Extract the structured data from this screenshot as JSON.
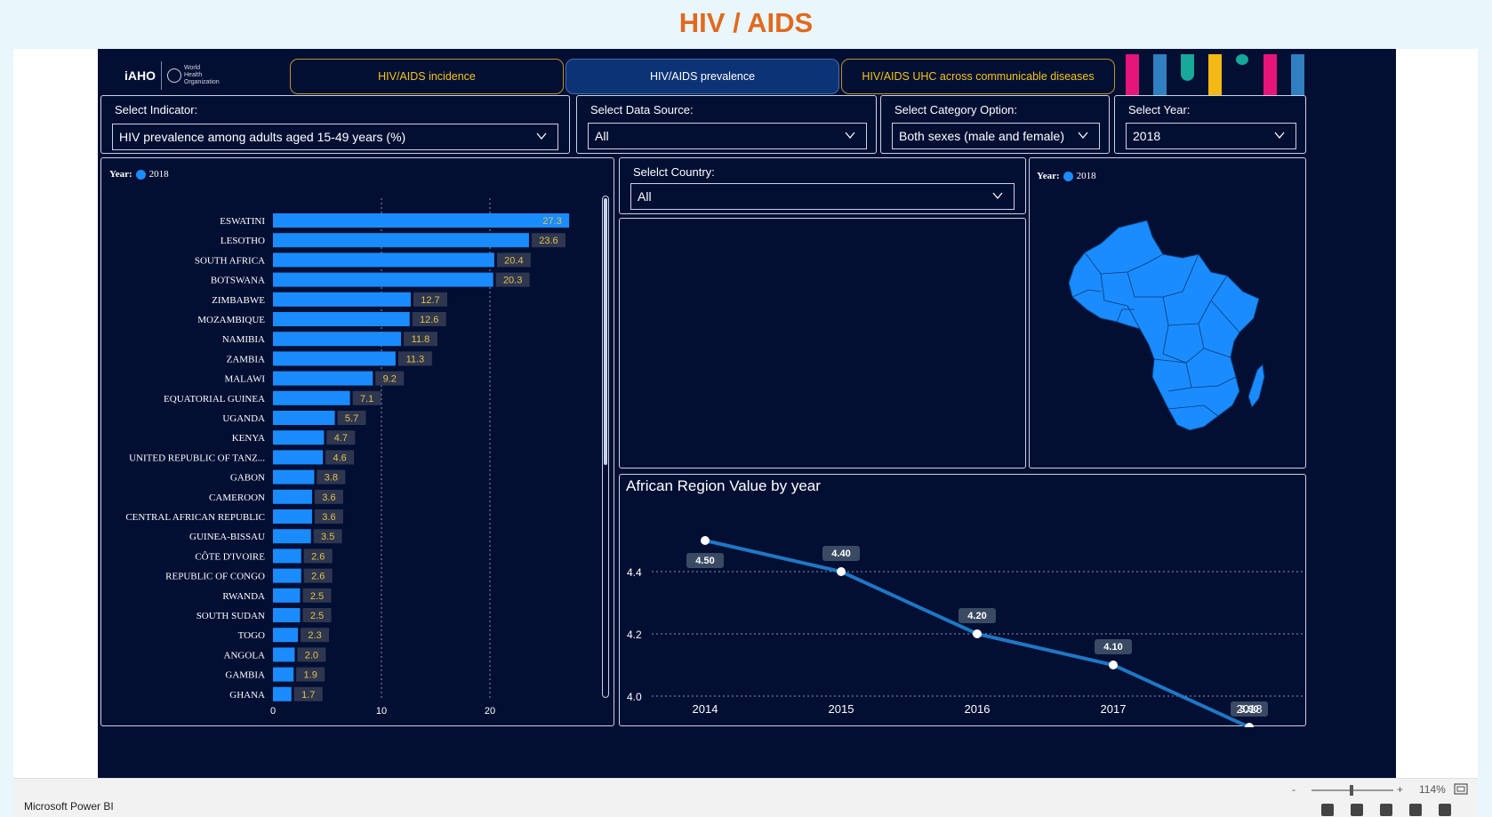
{
  "page": {
    "title": "HIV / AIDS"
  },
  "header": {
    "logo_left": "iAHO",
    "logo_right": "World Health Organization",
    "tabs": [
      {
        "label": "HIV/AIDS incidence",
        "active": false
      },
      {
        "label": "HIV/AIDS prevalence",
        "active": true
      },
      {
        "label": "HIV/AIDS UHC across communicable diseases",
        "active": false
      }
    ],
    "deco_colors": [
      "#e6157a",
      "#2f7fc1",
      "#16a89a",
      "#f5b915",
      "#16a89a",
      "#e6157a",
      "#2f7fc1"
    ]
  },
  "filters": {
    "indicator": {
      "label": "Select Indicator:",
      "value": "HIV prevalence among adults aged 15-49 years (%)"
    },
    "data_source": {
      "label": "Select Data Source:",
      "value": "All"
    },
    "category": {
      "label": "Select Category Option:",
      "value": "Both sexes (male and female)"
    },
    "year": {
      "label": "Select Year:",
      "value": "2018"
    },
    "country": {
      "label": "Selelct Country:",
      "value": "All"
    }
  },
  "bar_panel": {
    "legend_label": "Year:",
    "legend_value": "2018"
  },
  "map_panel": {
    "legend_label": "Year:",
    "legend_value": "2018"
  },
  "line_panel": {
    "title": "African Region Value by year"
  },
  "colors": {
    "bar": "#1a8cff",
    "line": "#1f77c4",
    "label_bg": "#2e3650",
    "bar_label": "#e0c04a",
    "accent": "#e06a1e"
  },
  "chart_data": [
    {
      "type": "bar",
      "orientation": "horizontal",
      "categories": [
        "ESWATINI",
        "LESOTHO",
        "SOUTH AFRICA",
        "BOTSWANA",
        "ZIMBABWE",
        "MOZAMBIQUE",
        "NAMIBIA",
        "ZAMBIA",
        "MALAWI",
        "EQUATORIAL GUINEA",
        "UGANDA",
        "KENYA",
        "UNITED REPUBLIC OF TANZ...",
        "GABON",
        "CAMEROON",
        "CENTRAL AFRICAN REPUBLIC",
        "GUINEA-BISSAU",
        "CÔTE D'IVOIRE",
        "REPUBLIC OF CONGO",
        "RWANDA",
        "SOUTH SUDAN",
        "TOGO",
        "ANGOLA",
        "GAMBIA",
        "GHANA"
      ],
      "series": [
        {
          "name": "2018",
          "values": [
            27.3,
            23.6,
            20.4,
            20.3,
            12.7,
            12.6,
            11.8,
            11.3,
            9.2,
            7.1,
            5.7,
            4.7,
            4.6,
            3.8,
            3.6,
            3.6,
            3.5,
            2.6,
            2.6,
            2.5,
            2.5,
            2.3,
            2.0,
            1.9,
            1.7
          ]
        }
      ],
      "data_labels": [
        "27.3",
        "23.6",
        "20.4",
        "20.3",
        "12.7",
        "12.6",
        "11.8",
        "11.3",
        "9.2",
        "7.1",
        "5.7",
        "4.7",
        "4.6",
        "3.8",
        "3.6",
        "3.6",
        "3.5",
        "2.6",
        "2.6",
        "2.5",
        "2.5",
        "2.3",
        "2.0",
        "1.9",
        "1.7"
      ],
      "xlim": [
        0,
        30
      ],
      "xticks": [
        "0",
        "10",
        "20"
      ],
      "grid": true,
      "legend": "top-left"
    },
    {
      "type": "line",
      "title": "African Region Value by year",
      "x": [
        "2014",
        "2015",
        "2016",
        "2017",
        "2018"
      ],
      "series": [
        {
          "values": [
            4.5,
            4.4,
            4.2,
            4.1,
            3.9
          ]
        }
      ],
      "data_labels": [
        "4.50",
        "4.40",
        "4.20",
        "4.10",
        "3.90"
      ],
      "ylim": [
        3.9,
        4.5
      ],
      "yticks": [
        "4.0",
        "4.2",
        "4.4"
      ],
      "grid": true
    }
  ],
  "footer": {
    "brand": "Microsoft Power BI",
    "zoom_minus": "-",
    "zoom_plus": "+",
    "zoom_level": "114%"
  }
}
